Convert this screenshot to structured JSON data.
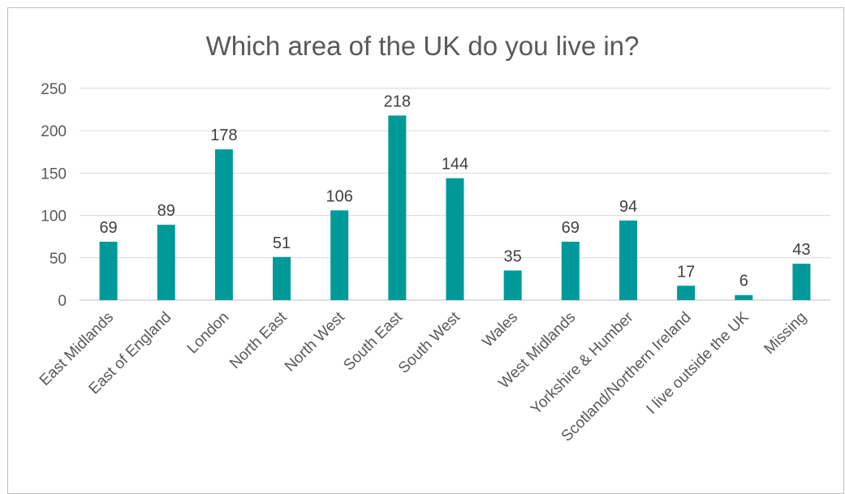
{
  "chart_data": {
    "type": "bar",
    "title": "Which area of the UK do you live in?",
    "categories": [
      "East Midlands",
      "East of England",
      "London",
      "North East",
      "North West",
      "South East",
      "South West",
      "Wales",
      "West Midlands",
      "Yorkshire & Humber",
      "Scotland/Northern Ireland",
      "I live outside the UK",
      "Missing"
    ],
    "values": [
      69,
      89,
      178,
      51,
      106,
      218,
      144,
      35,
      69,
      94,
      17,
      6,
      43
    ],
    "ylim": [
      0,
      250
    ],
    "yticks": [
      0,
      50,
      100,
      150,
      200,
      250
    ],
    "grid": true,
    "legend": "none",
    "bar_color": "#009999",
    "xlabel": "",
    "ylabel": ""
  }
}
